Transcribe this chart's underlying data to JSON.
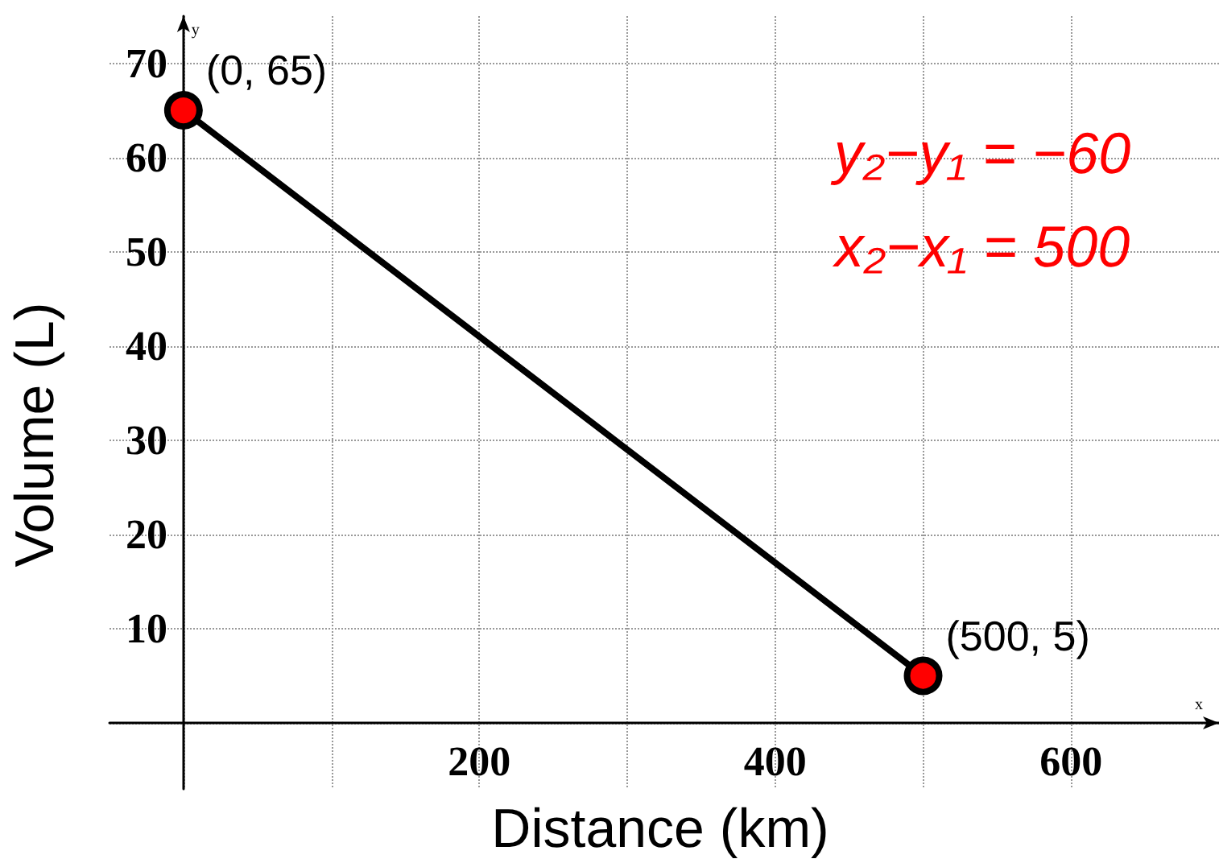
{
  "chart_data": {
    "type": "line",
    "xlabel": "Distance (km)",
    "ylabel": "Volume (L)",
    "x": [
      0,
      500
    ],
    "series": [
      {
        "color": "#000000",
        "values": [
          65,
          5
        ]
      }
    ],
    "marker": "circle",
    "line_style": "solid",
    "grid": true,
    "xlim": [
      -50,
      700
    ],
    "ylim": [
      -7,
      75
    ],
    "xticks": [
      {
        "value": 0,
        "label": null
      },
      {
        "value": 100,
        "label": null
      },
      200,
      {
        "value": 300,
        "label": null
      },
      400,
      {
        "value": 500,
        "label": null
      },
      600
    ],
    "yticks": [
      {
        "value": 0,
        "label": null
      },
      10,
      20,
      30,
      40,
      50,
      60,
      70
    ],
    "annotations": [
      {
        "text": "(0, 65)",
        "x": 0,
        "y": 65
      },
      {
        "text": "(500, 5)",
        "x": 500,
        "y": 5
      },
      "y",
      "x",
      "y₂−y₁ = −60",
      "x₂−x₁ = 500"
    ]
  }
}
